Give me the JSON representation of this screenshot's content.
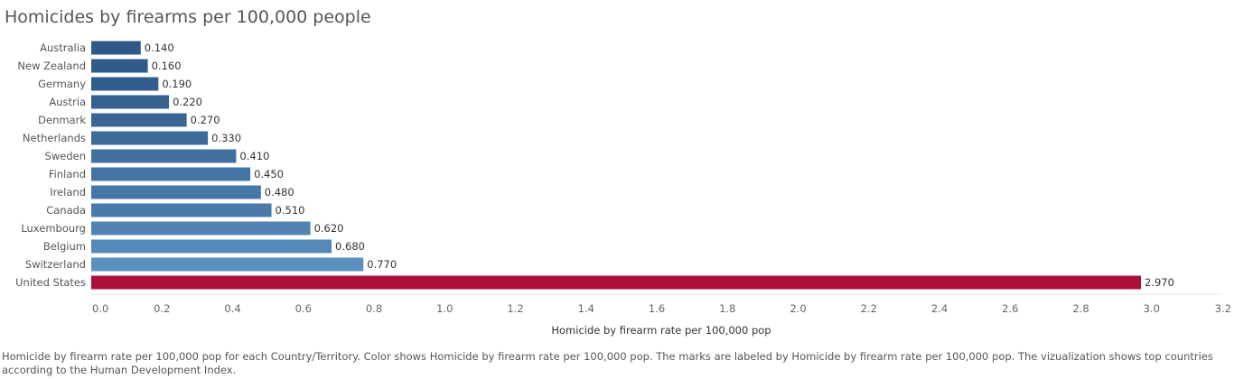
{
  "chart_data": {
    "type": "bar",
    "orientation": "horizontal",
    "title": "Homicides by firearms per 100,000 people",
    "xlabel": "Homicide by firearm rate per 100,000 pop",
    "ylabel": "",
    "categories": [
      "Australia",
      "New Zealand",
      "Germany",
      "Austria",
      "Denmark",
      "Netherlands",
      "Sweden",
      "Finland",
      "Ireland",
      "Canada",
      "Luxembourg",
      "Belgium",
      "Switzerland",
      "United States"
    ],
    "values": [
      0.14,
      0.16,
      0.19,
      0.22,
      0.27,
      0.33,
      0.41,
      0.45,
      0.48,
      0.51,
      0.62,
      0.68,
      0.77,
      2.97
    ],
    "value_labels": [
      "0.140",
      "0.160",
      "0.190",
      "0.220",
      "0.270",
      "0.330",
      "0.410",
      "0.450",
      "0.480",
      "0.510",
      "0.620",
      "0.680",
      "0.770",
      "2.970"
    ],
    "xlim": [
      0,
      3.2
    ],
    "xticks": [
      0.0,
      0.2,
      0.4,
      0.6,
      0.8,
      1.0,
      1.2,
      1.4,
      1.6,
      1.8,
      2.0,
      2.2,
      2.4,
      2.6,
      2.8,
      3.0,
      3.2
    ],
    "xtick_labels": [
      "0.0",
      "0.2",
      "0.4",
      "0.6",
      "0.8",
      "1.0",
      "1.2",
      "1.4",
      "1.6",
      "1.8",
      "2.0",
      "2.2",
      "2.4",
      "2.6",
      "2.8",
      "3.0",
      "3.2"
    ],
    "grid": false,
    "colors": {
      "low": "#2f5989",
      "high": "#5b91bf",
      "highlight": "#ad0f3d"
    }
  },
  "caption": "Homicide by firearm rate per 100,000 pop for each Country/Territory.  Color shows Homicide by firearm rate per 100,000 pop.  The marks are labeled by Homicide by firearm rate per 100,000 pop. The vizualization shows top countries according to the Human Development Index."
}
